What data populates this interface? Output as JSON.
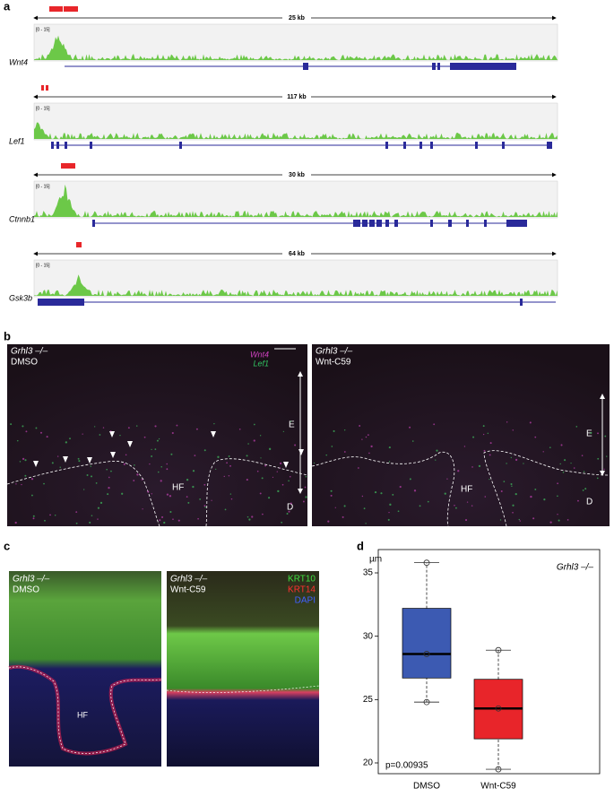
{
  "panel_a": {
    "label": "a",
    "tracks": [
      {
        "scale": "25 kb",
        "range": "[0 - 15]",
        "gene": "Wnt4"
      },
      {
        "scale": "117 kb",
        "range": "[0 - 15]",
        "gene": "Lef1"
      },
      {
        "scale": "30 kb",
        "range": "[0 - 15]",
        "gene": "Ctnnb1"
      },
      {
        "scale": "64 kb",
        "range": "[0 - 15]",
        "gene": "Gsk3b"
      }
    ]
  },
  "panel_b": {
    "label": "b",
    "left": {
      "genotype": "Grhl3 –/–",
      "treatment": "DMSO",
      "legend": [
        "Wnt4",
        "Lef1"
      ],
      "regions": [
        "E",
        "HF",
        "D"
      ]
    },
    "right": {
      "genotype": "Grhl3 –/–",
      "treatment": "Wnt-C59",
      "regions": [
        "E",
        "HF",
        "D"
      ]
    }
  },
  "panel_c": {
    "label": "c",
    "left": {
      "genotype": "Grhl3 –/–",
      "treatment": "DMSO",
      "region": "HF"
    },
    "right": {
      "genotype": "Grhl3 –/–",
      "treatment": "Wnt-C59",
      "legend": [
        "KRT10",
        "KRT14",
        "DAPI"
      ]
    }
  },
  "panel_d": {
    "label": "d"
  },
  "chart_data": {
    "type": "box",
    "categories": [
      "DMSO",
      "Wnt-C59"
    ],
    "colors": [
      "#3c5ab2",
      "#e8252a"
    ],
    "min": [
      24.8,
      19.5
    ],
    "q1": [
      26.7,
      21.9
    ],
    "median": [
      28.6,
      24.3
    ],
    "q3": [
      32.2,
      26.6
    ],
    "max": [
      35.8,
      28.9
    ],
    "points": [
      [
        24.8,
        28.6,
        35.8
      ],
      [
        19.5,
        24.3,
        28.9
      ]
    ],
    "ylabel": "µm",
    "ylim": [
      19.15,
      36.84
    ],
    "yticks": [
      20,
      25,
      30,
      35
    ],
    "annotation": "p=0.00935",
    "inset_label": "Grhl3 –/–"
  }
}
